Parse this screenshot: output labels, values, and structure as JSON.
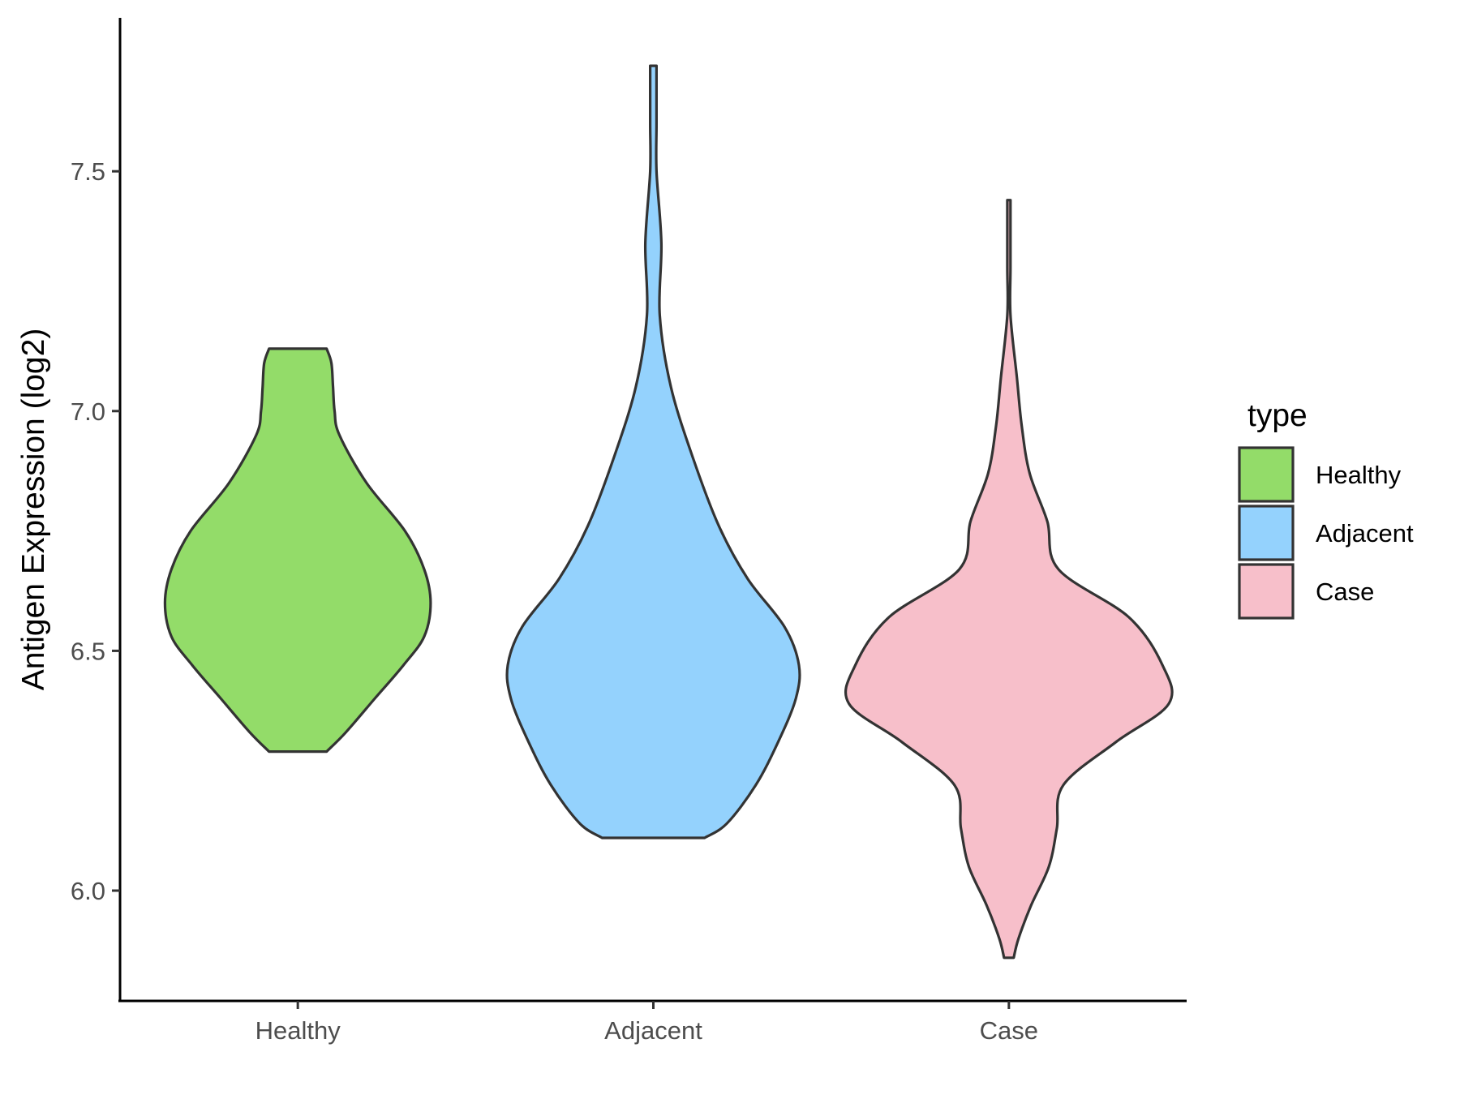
{
  "chart_data": {
    "type": "violin",
    "ylabel": "Antigen Expression (log2)",
    "xlabel": "",
    "categories": [
      "Healthy",
      "Adjacent",
      "Case"
    ],
    "ylim": [
      5.77,
      7.82
    ],
    "yticks": [
      6.0,
      6.5,
      7.0,
      7.5
    ],
    "ytick_labels": [
      "6.0",
      "6.5",
      "7.0",
      "7.5"
    ],
    "grid": false,
    "legend": {
      "title": "type",
      "position": "right",
      "entries": [
        {
          "label": "Healthy",
          "color": "#93dc69"
        },
        {
          "label": "Adjacent",
          "color": "#94d2fd"
        },
        {
          "label": "Case",
          "color": "#f7bfca"
        }
      ]
    },
    "series": [
      {
        "category": "Healthy",
        "color": "#93dc69",
        "min": 6.29,
        "max": 7.13,
        "density": [
          [
            6.29,
            0.18
          ],
          [
            6.33,
            0.3
          ],
          [
            6.4,
            0.48
          ],
          [
            6.47,
            0.66
          ],
          [
            6.53,
            0.79
          ],
          [
            6.6,
            0.83
          ],
          [
            6.67,
            0.79
          ],
          [
            6.75,
            0.67
          ],
          [
            6.85,
            0.43
          ],
          [
            6.95,
            0.26
          ],
          [
            7.0,
            0.23
          ],
          [
            7.05,
            0.22
          ],
          [
            7.1,
            0.21
          ],
          [
            7.13,
            0.18
          ]
        ]
      },
      {
        "category": "Adjacent",
        "color": "#94d2fd",
        "min": 6.11,
        "max": 7.72,
        "density": [
          [
            6.11,
            0.32
          ],
          [
            6.14,
            0.46
          ],
          [
            6.22,
            0.64
          ],
          [
            6.31,
            0.78
          ],
          [
            6.4,
            0.89
          ],
          [
            6.47,
            0.91
          ],
          [
            6.55,
            0.82
          ],
          [
            6.65,
            0.59
          ],
          [
            6.76,
            0.41
          ],
          [
            6.9,
            0.25
          ],
          [
            7.05,
            0.11
          ],
          [
            7.2,
            0.04
          ],
          [
            7.35,
            0.05
          ],
          [
            7.5,
            0.02
          ],
          [
            7.6,
            0.02
          ],
          [
            7.72,
            0.02
          ]
        ]
      },
      {
        "category": "Case",
        "color": "#f7bfca",
        "min": 5.86,
        "max": 7.44,
        "density": [
          [
            5.86,
            0.03
          ],
          [
            5.9,
            0.06
          ],
          [
            5.97,
            0.14
          ],
          [
            6.05,
            0.25
          ],
          [
            6.13,
            0.3
          ],
          [
            6.22,
            0.34
          ],
          [
            6.31,
            0.67
          ],
          [
            6.39,
            1.0
          ],
          [
            6.47,
            0.96
          ],
          [
            6.57,
            0.75
          ],
          [
            6.67,
            0.31
          ],
          [
            6.77,
            0.24
          ],
          [
            6.87,
            0.13
          ],
          [
            6.97,
            0.08
          ],
          [
            7.07,
            0.05
          ],
          [
            7.2,
            0.01
          ],
          [
            7.3,
            0.01
          ],
          [
            7.44,
            0.01
          ]
        ]
      }
    ]
  }
}
